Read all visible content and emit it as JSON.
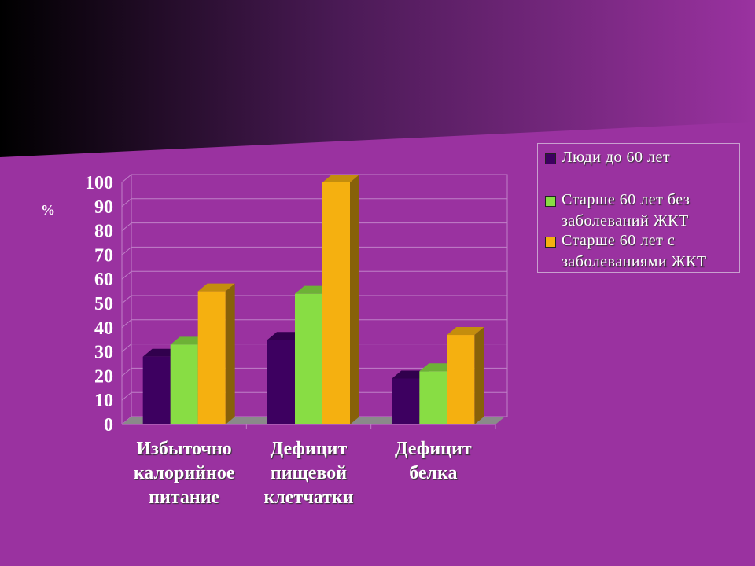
{
  "chart_data": {
    "type": "bar3d",
    "y_label": "%",
    "categories": [
      "Избыточно калорийное питание",
      "Дефицит пищевой клетчатки",
      "Дефицит белка"
    ],
    "series": [
      {
        "name": "Люди до 60 лет",
        "color": "#3d0060",
        "values": [
          28,
          35,
          19
        ]
      },
      {
        "name": "Старше 60 лет без заболеваний ЖКТ",
        "color": "#88dd44",
        "values": [
          33,
          54,
          22
        ]
      },
      {
        "name": "Старше 60 лет с заболеваниями ЖКТ",
        "color": "#f5b010",
        "values": [
          55,
          100,
          37
        ]
      }
    ],
    "ylim": [
      0,
      100
    ],
    "yticks": [
      0,
      10,
      20,
      30,
      40,
      50,
      60,
      70,
      80,
      90,
      100
    ],
    "grid": true
  }
}
